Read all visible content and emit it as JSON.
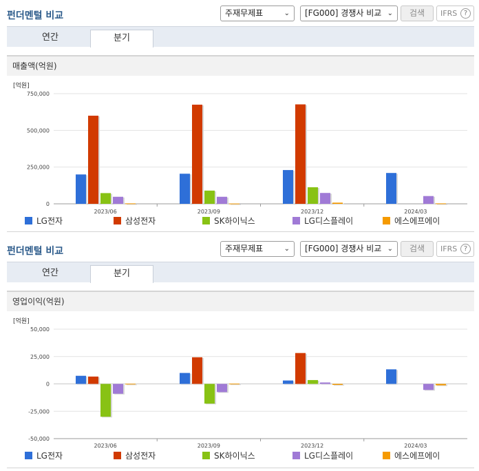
{
  "panels": [
    {
      "title": "펀더멘털 비교",
      "select_statement": "주재무제표",
      "select_peer": "[FG000] 경쟁사 비교",
      "search_label": "검색",
      "ifrs_label": "IFRS",
      "help_symbol": "?",
      "tab_annual": "연간",
      "tab_quarter": "분기",
      "chart_title": "매출액(억원)",
      "unit": "[억원]"
    },
    {
      "title": "펀더멘털 비교",
      "select_statement": "주재무제표",
      "select_peer": "[FG000] 경쟁사 비교",
      "search_label": "검색",
      "ifrs_label": "IFRS",
      "help_symbol": "?",
      "tab_annual": "연간",
      "tab_quarter": "분기",
      "chart_title": "영업이익(억원)",
      "unit": "[억원]"
    }
  ],
  "chart_data": [
    {
      "type": "bar",
      "title": "매출액(억원)",
      "categories": [
        "2023/06",
        "2023/09",
        "2023/12",
        "2024/03"
      ],
      "ylim": [
        0,
        750000
      ],
      "yticks": [
        0,
        250000,
        500000,
        750000
      ],
      "ytick_labels": [
        "0",
        "250,000",
        "500,000",
        "750,000"
      ],
      "grid": true,
      "legend": "bottom",
      "series": [
        {
          "name": "LG전자",
          "color": "#2e6fd8",
          "values": [
            200000,
            205000,
            230000,
            210000
          ]
        },
        {
          "name": "삼성전자",
          "color": "#d13a00",
          "values": [
            600000,
            675000,
            677000,
            null
          ]
        },
        {
          "name": "SK하이닉스",
          "color": "#88c214",
          "values": [
            73000,
            90000,
            113000,
            null
          ]
        },
        {
          "name": "LG디스플레이",
          "color": "#a07ad6",
          "values": [
            48000,
            48000,
            74000,
            53000
          ]
        },
        {
          "name": "에스에프에이",
          "color": "#f59a00",
          "values": [
            3000,
            2000,
            8000,
            3000
          ]
        }
      ]
    },
    {
      "type": "bar",
      "title": "영업이익(억원)",
      "categories": [
        "2023/06",
        "2023/09",
        "2023/12",
        "2024/03"
      ],
      "ylim": [
        -50000,
        50000
      ],
      "yticks": [
        -50000,
        -25000,
        0,
        25000,
        50000
      ],
      "ytick_labels": [
        "-50,000",
        "-25,000",
        "0",
        "25,000",
        "50,000"
      ],
      "grid": true,
      "legend": "bottom",
      "series": [
        {
          "name": "LG전자",
          "color": "#2e6fd8",
          "values": [
            7400,
            10000,
            3100,
            13300
          ]
        },
        {
          "name": "삼성전자",
          "color": "#d13a00",
          "values": [
            6700,
            24300,
            28200,
            null
          ]
        },
        {
          "name": "SK하이닉스",
          "color": "#88c214",
          "values": [
            -30000,
            -18000,
            3500,
            null
          ]
        },
        {
          "name": "LG디스플레이",
          "color": "#a07ad6",
          "values": [
            -9000,
            -7500,
            1300,
            -5500
          ]
        },
        {
          "name": "에스에프에이",
          "color": "#f59a00",
          "values": [
            100,
            200,
            -900,
            -1300
          ]
        }
      ]
    }
  ]
}
